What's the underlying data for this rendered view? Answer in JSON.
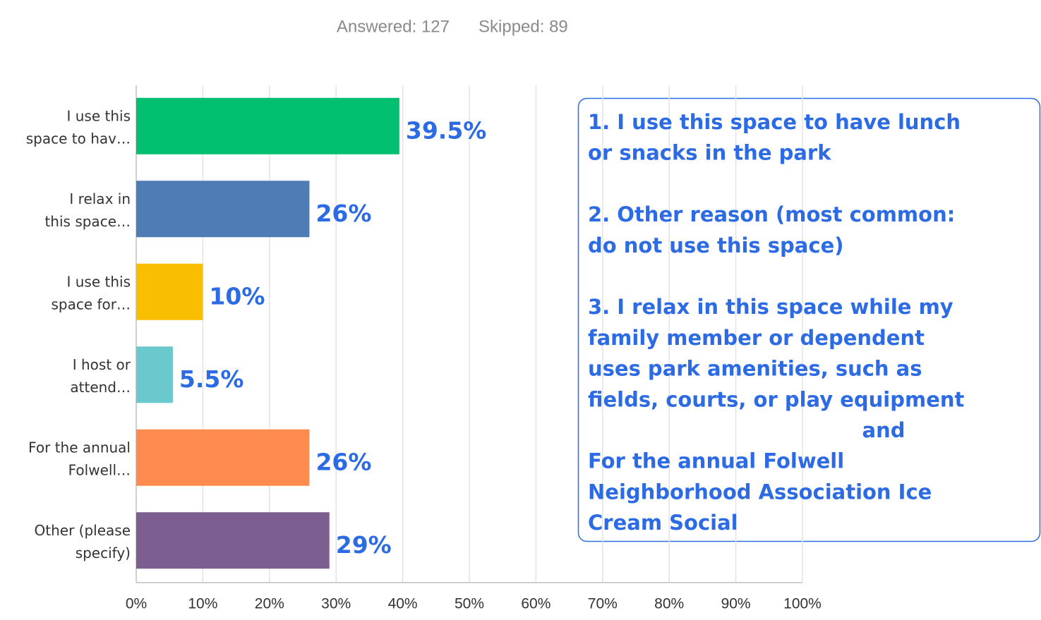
{
  "chart_data": {
    "type": "bar",
    "orientation": "horizontal",
    "answered": "Answered: 127",
    "skipped": "Skipped: 89",
    "categories": [
      [
        "I use this",
        "space to hav…"
      ],
      [
        "I relax in",
        "this space…"
      ],
      [
        "I use this",
        "space for…"
      ],
      [
        "I host or",
        "attend…"
      ],
      [
        "For the annual",
        "Folwell…"
      ],
      [
        "Other (please",
        "specify)"
      ]
    ],
    "values": [
      39.5,
      26,
      10,
      5.5,
      26,
      29
    ],
    "value_labels": [
      "39.5%",
      "26%",
      "10%",
      "5.5%",
      "26%",
      "29%"
    ],
    "colors": [
      "#00bf6f",
      "#507cb6",
      "#f9be00",
      "#6bc8cd",
      "#ff8b4f",
      "#7d5e90"
    ],
    "xlim": [
      0,
      100
    ],
    "xticks": [
      {
        "value": 0,
        "label": "0%"
      },
      {
        "value": 10,
        "label": "10%"
      },
      {
        "value": 20,
        "label": "20%"
      },
      {
        "value": 30,
        "label": "30%"
      },
      {
        "value": 40,
        "label": "40%"
      },
      {
        "value": 50,
        "label": "50%"
      },
      {
        "value": 60,
        "label": "60%"
      },
      {
        "value": 70,
        "label": "70%"
      },
      {
        "value": 80,
        "label": "80%"
      },
      {
        "value": 90,
        "label": "90%"
      },
      {
        "value": 100,
        "label": "100%"
      }
    ],
    "grid": true,
    "annotation": {
      "blocks": [
        [
          "1. I use this space to have lunch",
          "or snacks in the park"
        ],
        [
          "2. Other reason (most common:",
          "do not use this space)"
        ],
        [
          "3. I relax in this space while my",
          "family member or dependent",
          "uses park amenities, such as",
          "fields, courts, or play equipment"
        ]
      ],
      "connector": "and",
      "final": [
        "For the annual Folwell",
        "Neighborhood Association Ice",
        "Cream Social"
      ]
    }
  }
}
